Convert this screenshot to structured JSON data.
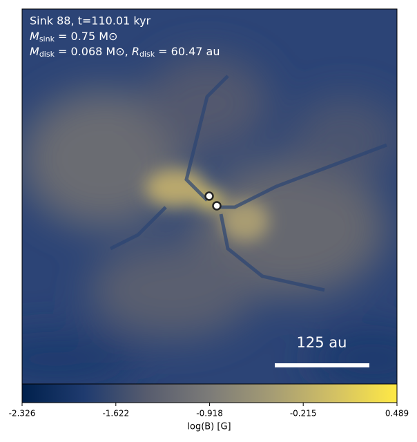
{
  "chart_data": {
    "type": "image",
    "annotation": {
      "line1": "Sink 88, t=110.01 kyr",
      "line2": {
        "symbol": "M",
        "sub": "sink",
        "rest": " = 0.75 M⊙"
      },
      "line3": {
        "symbol": "M",
        "sub": "disk",
        "rest": " = 0.068 M⊙, ",
        "symbol2": "R",
        "sub2": "disk",
        "rest2": " = 60.47 au"
      }
    },
    "scale_bar": "125 au",
    "colorbar": {
      "label": "log(B) [G]",
      "lim": [
        -2.326,
        0.489
      ],
      "ticks": [
        -2.326,
        -1.622,
        -0.918,
        -0.215,
        0.489
      ],
      "colormap": [
        "#00204c",
        "#1f3b6f",
        "#575c6e",
        "#7c7b78",
        "#a59c74",
        "#d3c164",
        "#ffe945"
      ]
    }
  }
}
